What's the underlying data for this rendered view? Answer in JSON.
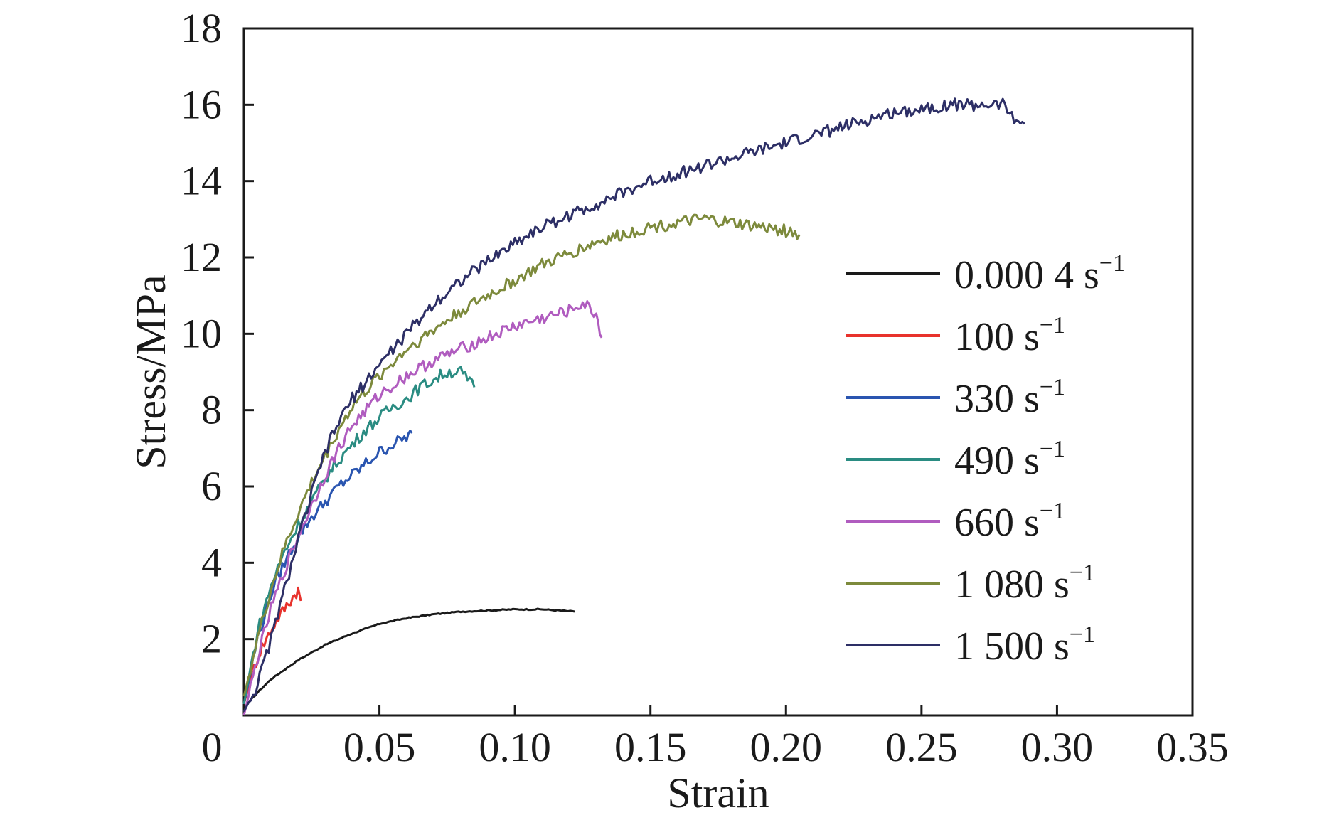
{
  "chart_data": {
    "type": "line",
    "xlabel": "Strain",
    "ylabel": "Stress/MPa",
    "xlim": [
      0,
      0.35
    ],
    "ylim": [
      0,
      18
    ],
    "x_ticks": [
      0,
      0.05,
      0.1,
      0.15,
      0.2,
      0.25,
      0.3,
      0.35
    ],
    "x_tick_labels": [
      "0",
      "0.05",
      "0.10",
      "0.15",
      "0.20",
      "0.25",
      "0.30",
      "0.35"
    ],
    "y_ticks": [
      2,
      4,
      6,
      8,
      10,
      12,
      14,
      16,
      18
    ],
    "y_tick_labels": [
      "2",
      "4",
      "6",
      "8",
      "10",
      "12",
      "14",
      "16",
      "18"
    ],
    "legend_position": "right",
    "grid": false,
    "series": [
      {
        "name": "0.000 4 s",
        "name_sup": "−1",
        "color": "#1a1a1a",
        "x": [
          0,
          0.005,
          0.01,
          0.02,
          0.03,
          0.04,
          0.05,
          0.06,
          0.07,
          0.08,
          0.09,
          0.1,
          0.11,
          0.122
        ],
        "y": [
          0.2,
          0.6,
          0.95,
          1.45,
          1.85,
          2.15,
          2.4,
          2.55,
          2.65,
          2.72,
          2.75,
          2.78,
          2.78,
          2.72
        ]
      },
      {
        "name": "100 s",
        "name_sup": "−1",
        "color": "#e8322c",
        "x": [
          0,
          0.003,
          0.006,
          0.009,
          0.012,
          0.015,
          0.018,
          0.02,
          0.021
        ],
        "y": [
          0.3,
          1.1,
          1.7,
          2.1,
          2.5,
          2.8,
          3.1,
          3.3,
          3.0
        ]
      },
      {
        "name": "330 s",
        "name_sup": "−1",
        "color": "#2a55b0",
        "x": [
          0,
          0.005,
          0.01,
          0.015,
          0.02,
          0.025,
          0.03,
          0.035,
          0.04,
          0.045,
          0.05,
          0.055,
          0.06,
          0.062
        ],
        "y": [
          0.3,
          2.0,
          3.2,
          4.0,
          4.7,
          5.2,
          5.6,
          6.0,
          6.3,
          6.6,
          6.9,
          7.1,
          7.3,
          7.4
        ]
      },
      {
        "name": "490 s",
        "name_sup": "−1",
        "color": "#2a8c82",
        "x": [
          0,
          0.005,
          0.01,
          0.015,
          0.02,
          0.025,
          0.03,
          0.035,
          0.04,
          0.045,
          0.05,
          0.055,
          0.06,
          0.065,
          0.07,
          0.075,
          0.08,
          0.085
        ],
        "y": [
          0.3,
          2.2,
          3.4,
          4.3,
          5.0,
          5.6,
          6.2,
          6.7,
          7.1,
          7.5,
          7.8,
          8.1,
          8.3,
          8.6,
          8.8,
          9.0,
          9.0,
          8.6
        ]
      },
      {
        "name": "660 s",
        "name_sup": "−1",
        "color": "#b05cbf",
        "x": [
          0,
          0.005,
          0.01,
          0.015,
          0.02,
          0.025,
          0.03,
          0.035,
          0.04,
          0.05,
          0.06,
          0.07,
          0.08,
          0.09,
          0.1,
          0.11,
          0.12,
          0.125,
          0.13,
          0.132
        ],
        "y": [
          0.0,
          1.5,
          2.8,
          3.8,
          4.7,
          5.5,
          6.3,
          7.0,
          7.6,
          8.4,
          8.9,
          9.3,
          9.6,
          9.9,
          10.2,
          10.4,
          10.6,
          10.8,
          10.5,
          9.9
        ]
      },
      {
        "name": "1 080 s",
        "name_sup": "−1",
        "color": "#7d8a3c",
        "x": [
          0,
          0.005,
          0.01,
          0.015,
          0.02,
          0.025,
          0.03,
          0.035,
          0.04,
          0.05,
          0.06,
          0.07,
          0.08,
          0.09,
          0.1,
          0.11,
          0.12,
          0.13,
          0.14,
          0.15,
          0.16,
          0.17,
          0.18,
          0.19,
          0.2,
          0.205
        ],
        "y": [
          0.5,
          2.0,
          3.3,
          4.4,
          5.3,
          6.1,
          6.8,
          7.5,
          8.1,
          8.9,
          9.6,
          10.1,
          10.6,
          11.0,
          11.4,
          11.8,
          12.1,
          12.4,
          12.6,
          12.8,
          12.9,
          13.0,
          12.9,
          12.8,
          12.7,
          12.6
        ]
      },
      {
        "name": "1 500 s",
        "name_sup": "−1",
        "color": "#2d2f66",
        "x": [
          0,
          0.005,
          0.01,
          0.015,
          0.02,
          0.025,
          0.03,
          0.035,
          0.04,
          0.05,
          0.06,
          0.07,
          0.08,
          0.09,
          0.1,
          0.11,
          0.12,
          0.13,
          0.14,
          0.15,
          0.16,
          0.17,
          0.18,
          0.19,
          0.2,
          0.21,
          0.22,
          0.23,
          0.24,
          0.25,
          0.26,
          0.27,
          0.28,
          0.285,
          0.288
        ],
        "y": [
          0.1,
          0.8,
          2.0,
          3.3,
          4.6,
          5.8,
          6.9,
          7.7,
          8.3,
          9.2,
          10.0,
          10.8,
          11.4,
          11.9,
          12.4,
          12.8,
          13.1,
          13.4,
          13.7,
          14.0,
          14.2,
          14.4,
          14.6,
          14.8,
          15.0,
          15.2,
          15.4,
          15.6,
          15.8,
          15.9,
          16.0,
          16.0,
          16.0,
          15.6,
          15.5
        ]
      }
    ]
  }
}
